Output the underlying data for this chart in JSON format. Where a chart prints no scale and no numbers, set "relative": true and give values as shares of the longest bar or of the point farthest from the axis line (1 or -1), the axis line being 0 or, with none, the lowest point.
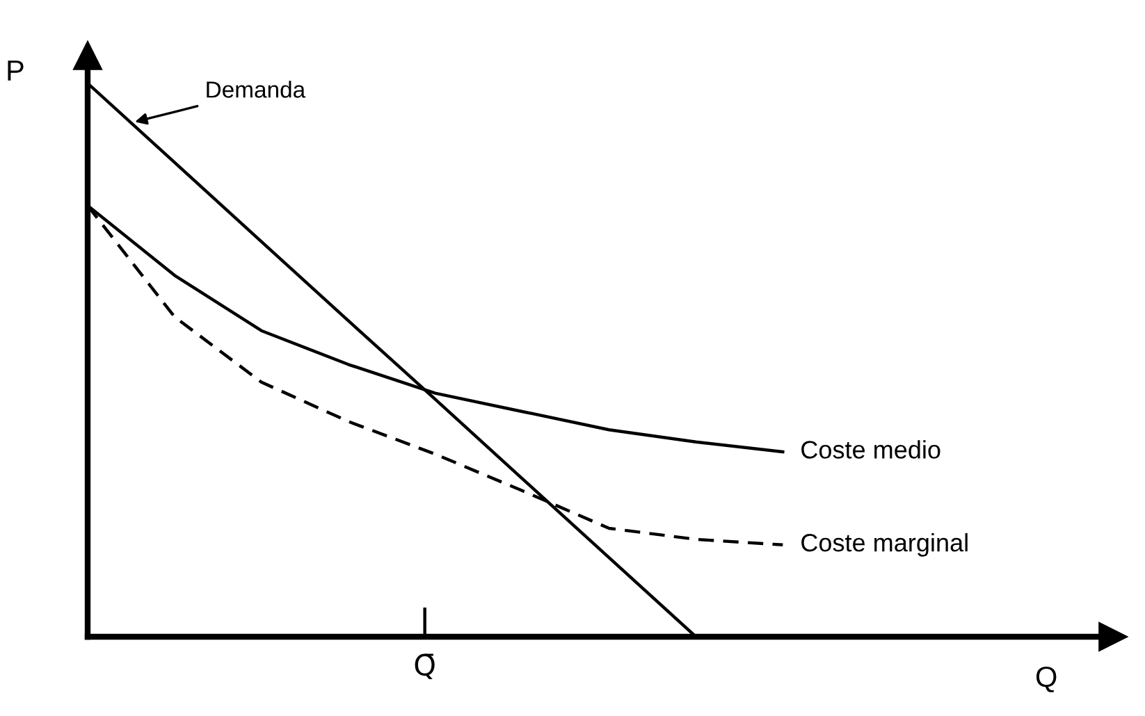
{
  "chart_data": {
    "type": "line",
    "relative": true,
    "ylabel": "P",
    "legend": false,
    "annotations": [
      "Demanda",
      "Q̄",
      "Q"
    ],
    "categories": [
      null,
      null,
      null,
      null,
      null,
      null,
      null,
      null,
      null
    ],
    "series": [
      {
        "color": "#000000",
        "line_style": "solid",
        "values": [
          1,
          0.857,
          0.714,
          0.571,
          0.429,
          0.286,
          0.143,
          0,
          null
        ]
      },
      {
        "name": "Coste medio",
        "color": "#000000",
        "line_style": "solid",
        "values": [
          0.779,
          0.653,
          0.553,
          0.492,
          0.44,
          0.407,
          0.374,
          0.352,
          0.334
        ]
      },
      {
        "name": "Coste marginal",
        "color": "#000000",
        "line_style": "dashed",
        "values": [
          0.779,
          0.578,
          0.46,
          0.389,
          0.33,
          0.264,
          0.196,
          0.176,
          0.166
        ]
      }
    ]
  }
}
